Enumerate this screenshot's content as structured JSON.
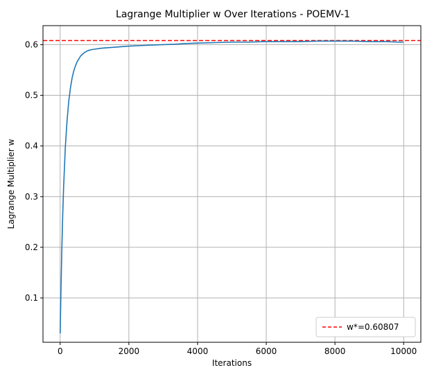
{
  "chart_data": {
    "type": "line",
    "title": "Lagrange Multiplier w Over Iterations - POEMV-1",
    "xlabel": "Iterations",
    "ylabel": "Lagrange Multiplier w",
    "xlim": [
      -500,
      10500
    ],
    "ylim": [
      0.0125,
      0.6375
    ],
    "xticks": [
      0,
      2000,
      4000,
      6000,
      8000,
      10000
    ],
    "yticks": [
      0.1,
      0.2,
      0.3,
      0.4,
      0.5,
      0.6
    ],
    "grid": true,
    "legend_position": "lower-right",
    "series": [
      {
        "color": "#1f77b4",
        "x": [
          0,
          25,
          50,
          75,
          100,
          150,
          200,
          250,
          300,
          350,
          400,
          450,
          500,
          600,
          700,
          800,
          900,
          1000,
          1200,
          1400,
          1600,
          1800,
          2000,
          2300,
          2600,
          3000,
          3400,
          3600,
          4000,
          4500,
          5000,
          5500,
          6000,
          6500,
          7000,
          7500,
          8000,
          8500,
          9000,
          9500,
          9800,
          10000
        ],
        "y": [
          0.03,
          0.12,
          0.2,
          0.265,
          0.318,
          0.397,
          0.449,
          0.488,
          0.515,
          0.535,
          0.549,
          0.559,
          0.567,
          0.578,
          0.584,
          0.588,
          0.59,
          0.591,
          0.593,
          0.594,
          0.595,
          0.596,
          0.597,
          0.598,
          0.599,
          0.6,
          0.601,
          0.602,
          0.603,
          0.604,
          0.605,
          0.605,
          0.606,
          0.606,
          0.606,
          0.607,
          0.607,
          0.607,
          0.606,
          0.606,
          0.605,
          0.605
        ]
      }
    ],
    "reference_line": {
      "label": "w*=0.60807",
      "y": 0.60807,
      "color": "#ff0000",
      "style": "dashed"
    }
  }
}
